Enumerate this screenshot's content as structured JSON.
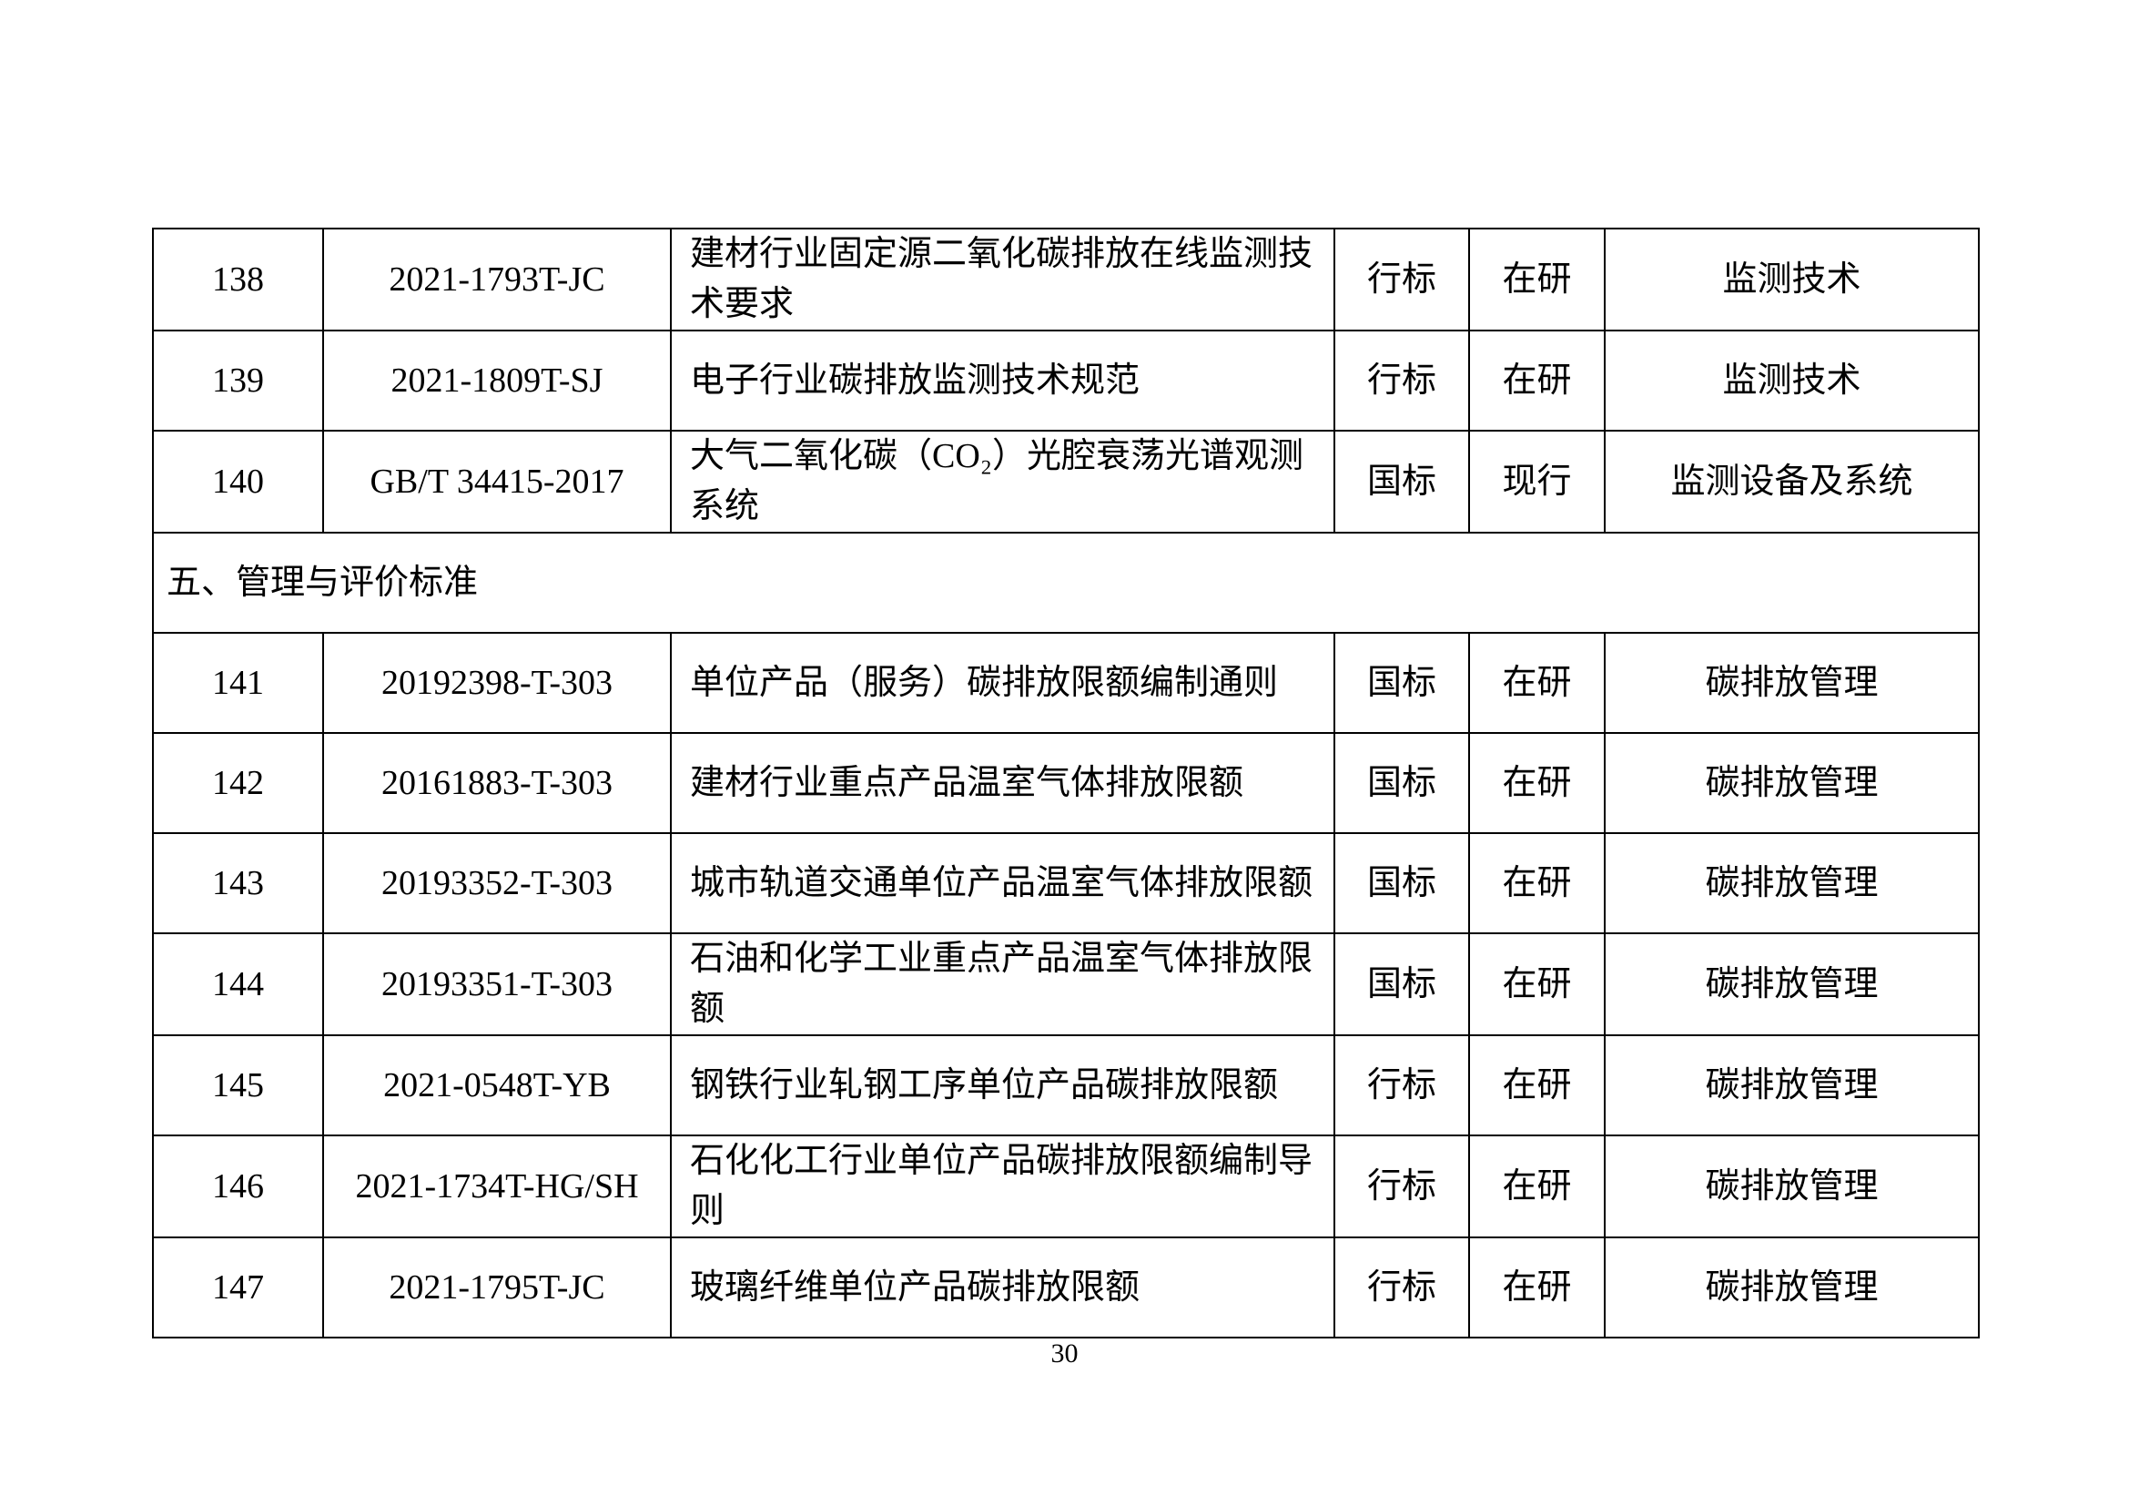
{
  "page": {
    "number": "30"
  },
  "table": {
    "rows": [
      {
        "kind": "standard",
        "num": "138",
        "code": "2021-1793T-JC",
        "title": "建材行业固定源二氧化碳排放在线监测技术要求",
        "type": "行标",
        "status": "在研",
        "category": "监测技术"
      },
      {
        "kind": "standard",
        "num": "139",
        "code": "2021-1809T-SJ",
        "title": "电子行业碳排放监测技术规范",
        "type": "行标",
        "status": "在研",
        "category": "监测技术"
      },
      {
        "kind": "standard",
        "num": "140",
        "code": "GB/T 34415-2017",
        "title": "大气二氧化碳（CO₂）光腔衰荡光谱观测系统",
        "type": "国标",
        "status": "现行",
        "category": "监测设备及系统"
      },
      {
        "kind": "section",
        "label": "五、管理与评价标准"
      },
      {
        "kind": "standard",
        "num": "141",
        "code": "20192398-T-303",
        "title": "单位产品（服务）碳排放限额编制通则",
        "type": "国标",
        "status": "在研",
        "category": "碳排放管理"
      },
      {
        "kind": "standard",
        "num": "142",
        "code": "20161883-T-303",
        "title": "建材行业重点产品温室气体排放限额",
        "type": "国标",
        "status": "在研",
        "category": "碳排放管理"
      },
      {
        "kind": "standard",
        "num": "143",
        "code": "20193352-T-303",
        "title": "城市轨道交通单位产品温室气体排放限额",
        "type": "国标",
        "status": "在研",
        "category": "碳排放管理"
      },
      {
        "kind": "standard",
        "num": "144",
        "code": "20193351-T-303",
        "title": "石油和化学工业重点产品温室气体排放限额",
        "type": "国标",
        "status": "在研",
        "category": "碳排放管理"
      },
      {
        "kind": "standard",
        "num": "145",
        "code": "2021-0548T-YB",
        "title": "钢铁行业轧钢工序单位产品碳排放限额",
        "type": "行标",
        "status": "在研",
        "category": "碳排放管理"
      },
      {
        "kind": "standard",
        "num": "146",
        "code": "2021-1734T-HG/SH",
        "title": "石化化工行业单位产品碳排放限额编制导则",
        "type": "行标",
        "status": "在研",
        "category": "碳排放管理"
      },
      {
        "kind": "standard",
        "num": "147",
        "code": "2021-1795T-JC",
        "title": "玻璃纤维单位产品碳排放限额",
        "type": "行标",
        "status": "在研",
        "category": "碳排放管理"
      }
    ]
  }
}
